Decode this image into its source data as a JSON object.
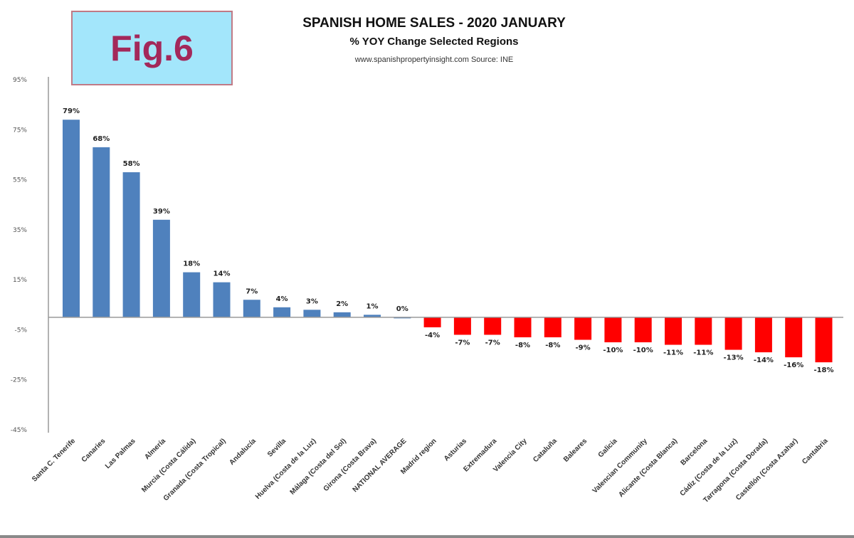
{
  "figure_label": "Fig.6",
  "chart_data": {
    "type": "bar",
    "title": "SPANISH HOME SALES - 2020 JANUARY",
    "subtitle": "% YOY Change Selected Regions",
    "source": "www.spanishpropertyinsight.com Source: INE",
    "xlabel": "",
    "ylabel": "",
    "ylim": [
      -45,
      95
    ],
    "yticks": [
      95,
      75,
      55,
      35,
      15,
      -5,
      -25,
      -45
    ],
    "ytick_labels": [
      "95%",
      "75%",
      "55%",
      "35%",
      "15%",
      "-5%",
      "-25%",
      "-45%"
    ],
    "grid": false,
    "positive_color": "#4f81bd",
    "negative_color": "#ff0000",
    "categories": [
      "Santa C. Tenerife",
      "Canaries",
      "Las Palmas",
      "Almería",
      "Murcia (Costa Cálida)",
      "Granada (Costa Tropical)",
      "Andalucía",
      "Sevilla",
      "Huelva (Costa de la Luz)",
      "Málaga (Costa del Sol)",
      "Girona (Costa Brava)",
      "NATIONAL AVERAGE",
      "Madrid region",
      "Asturias",
      "Extremadura",
      "Valencia City",
      "Cataluña",
      "Baleares",
      "Galicia",
      "Valencian Community",
      "Alicante (Costa Blanca)",
      "Barcelona",
      "Cádiz (Costa de la Luz)",
      "Tarragona (Costa Dorada)",
      "Castellón (Costa Azahar)",
      "Cantabria"
    ],
    "values": [
      79,
      68,
      58,
      39,
      18,
      14,
      7,
      4,
      3,
      2,
      1,
      0,
      -4,
      -7,
      -7,
      -8,
      -8,
      -9,
      -10,
      -10,
      -11,
      -11,
      -13,
      -14,
      -16,
      -18
    ],
    "data_labels": [
      "79%",
      "68%",
      "58%",
      "39%",
      "18%",
      "14%",
      "7%",
      "4%",
      "3%",
      "2%",
      "1%",
      "0%",
      "-4%",
      "-7%",
      "-7%",
      "-8%",
      "-8%",
      "-9%",
      "-10%",
      "-10%",
      "-11%",
      "-11%",
      "-13%",
      "-14%",
      "-16%",
      "-18%"
    ]
  }
}
